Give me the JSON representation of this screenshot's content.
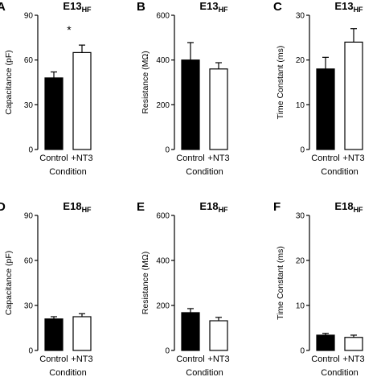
{
  "chart_data": [
    {
      "panel": "A",
      "type": "bar",
      "title": "E13",
      "title_subscript": "HF",
      "ylabel": "Capacitance (pF)",
      "xlabel": "Condition",
      "categories": [
        "Control",
        "+NT3"
      ],
      "values": [
        48,
        65
      ],
      "errors": [
        4,
        5
      ],
      "bar_colors": [
        "#000000",
        "#ffffff"
      ],
      "ylim": [
        0,
        90
      ],
      "yticks": [
        "0",
        "30",
        "60",
        "90"
      ],
      "significance": [
        {
          "category_index": 1,
          "label": "*"
        }
      ]
    },
    {
      "panel": "B",
      "type": "bar",
      "title": "E13",
      "title_subscript": "HF",
      "ylabel": "Resistance (MΩ)",
      "xlabel": "Condition",
      "categories": [
        "Control",
        "+NT3"
      ],
      "values": [
        400,
        360
      ],
      "errors": [
        78,
        28
      ],
      "bar_colors": [
        "#000000",
        "#ffffff"
      ],
      "ylim": [
        0,
        600
      ],
      "yticks": [
        "0",
        "200",
        "400",
        "600"
      ],
      "significance": []
    },
    {
      "panel": "C",
      "type": "bar",
      "title": "E13",
      "title_subscript": "HF",
      "ylabel": "Time Constant (ms)",
      "xlabel": "Condition",
      "categories": [
        "Control",
        "+NT3"
      ],
      "values": [
        18,
        24
      ],
      "errors": [
        2.6,
        3
      ],
      "bar_colors": [
        "#000000",
        "#ffffff"
      ],
      "ylim": [
        0,
        30
      ],
      "yticks": [
        "0",
        "10",
        "20",
        "30"
      ],
      "significance": []
    },
    {
      "panel": "D",
      "type": "bar",
      "title": "E18",
      "title_subscript": "HF",
      "ylabel": "Capacitance (pF)",
      "xlabel": "Condition",
      "categories": [
        "Control",
        "+NT3"
      ],
      "values": [
        21,
        22.5
      ],
      "errors": [
        1.5,
        2
      ],
      "bar_colors": [
        "#000000",
        "#ffffff"
      ],
      "ylim": [
        0,
        90
      ],
      "yticks": [
        "0",
        "30",
        "60",
        "90"
      ],
      "significance": []
    },
    {
      "panel": "E",
      "type": "bar",
      "title": "E18",
      "title_subscript": "HF",
      "ylabel": "Resistance (MΩ)",
      "xlabel": "Condition",
      "categories": [
        "Control",
        "+NT3"
      ],
      "values": [
        168,
        132
      ],
      "errors": [
        18,
        15
      ],
      "bar_colors": [
        "#000000",
        "#ffffff"
      ],
      "ylim": [
        0,
        600
      ],
      "yticks": [
        "0",
        "200",
        "400",
        "600"
      ],
      "significance": []
    },
    {
      "panel": "F",
      "type": "bar",
      "title": "E18",
      "title_subscript": "HF",
      "ylabel": "Time Constant (ms)",
      "xlabel": "Condition",
      "categories": [
        "Control",
        "+NT3"
      ],
      "values": [
        3.4,
        2.9
      ],
      "errors": [
        0.4,
        0.5
      ],
      "bar_colors": [
        "#000000",
        "#ffffff"
      ],
      "ylim": [
        0,
        30
      ],
      "yticks": [
        "0",
        "10",
        "20",
        "30"
      ],
      "significance": []
    }
  ]
}
